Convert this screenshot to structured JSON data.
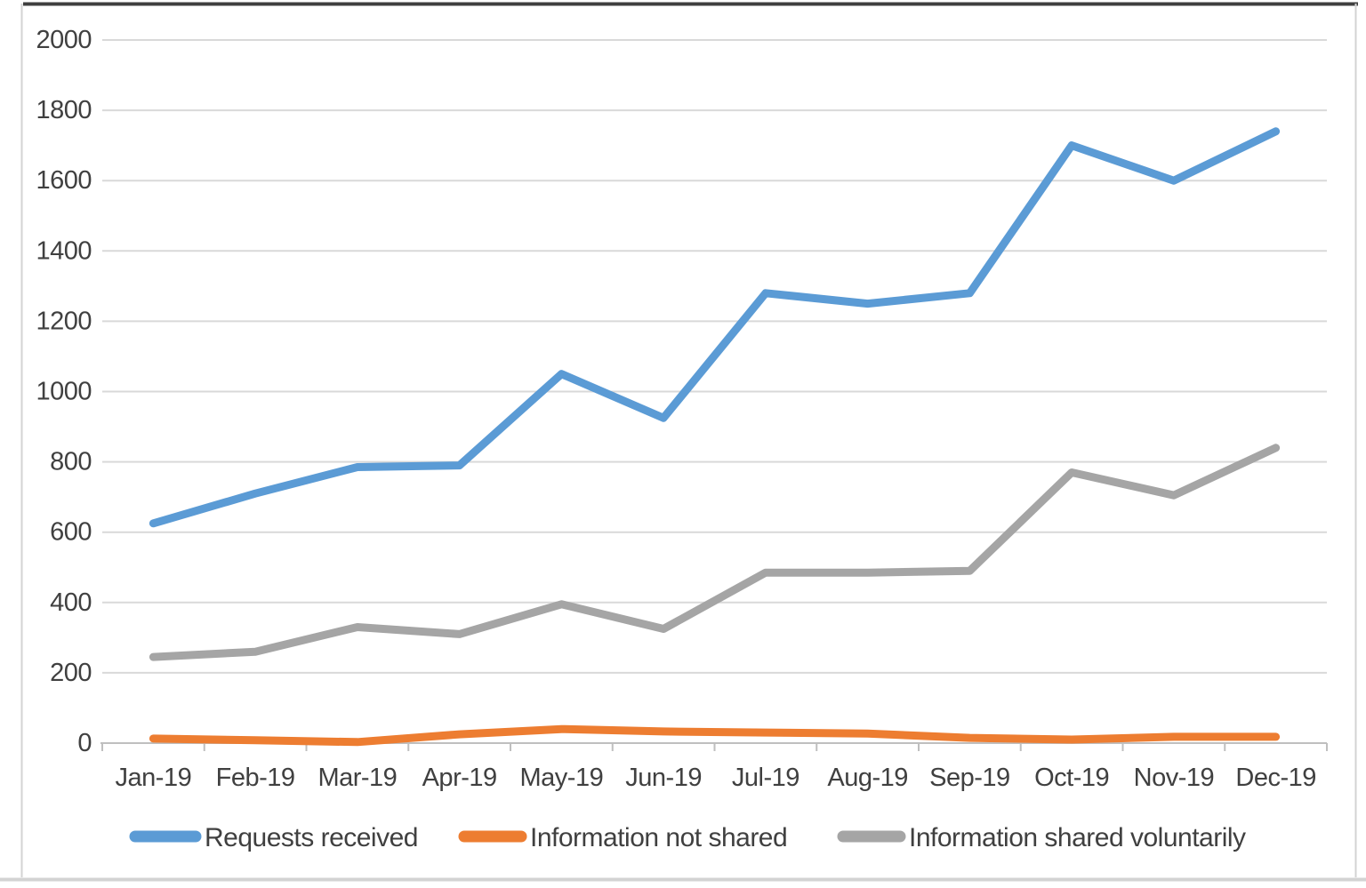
{
  "chart_data": {
    "type": "line",
    "categories": [
      "Jan-19",
      "Feb-19",
      "Mar-19",
      "Apr-19",
      "May-19",
      "Jun-19",
      "Jul-19",
      "Aug-19",
      "Sep-19",
      "Oct-19",
      "Nov-19",
      "Dec-19"
    ],
    "series": [
      {
        "name": "Requests received",
        "color": "#5B9BD5",
        "values": [
          625,
          710,
          785,
          790,
          1050,
          925,
          1280,
          1250,
          1280,
          1700,
          1600,
          1740
        ]
      },
      {
        "name": "Information not shared",
        "color": "#ED7D31",
        "values": [
          13,
          8,
          3,
          25,
          40,
          33,
          30,
          27,
          15,
          10,
          18,
          18
        ]
      },
      {
        "name": "Information shared voluntarily",
        "color": "#A5A5A5",
        "values": [
          245,
          260,
          330,
          310,
          395,
          325,
          485,
          485,
          490,
          770,
          705,
          840
        ]
      }
    ],
    "title": "",
    "xlabel": "",
    "ylabel": "",
    "ylim": [
      0,
      2000
    ],
    "ytick_step": 200,
    "ytick_labels": [
      "0",
      "200",
      "400",
      "600",
      "800",
      "1000",
      "1200",
      "1400",
      "1600",
      "1800",
      "2000"
    ],
    "grid": true,
    "legend_position": "bottom"
  },
  "colors": {
    "gridline": "#D9D9D9",
    "axis_line": "#BFBFBF",
    "tick": "#BFBFBF",
    "label_text": "#404040",
    "border_top": "#3F3F3F",
    "border_light": "#D3D3D3",
    "background": "#FFFFFF"
  }
}
